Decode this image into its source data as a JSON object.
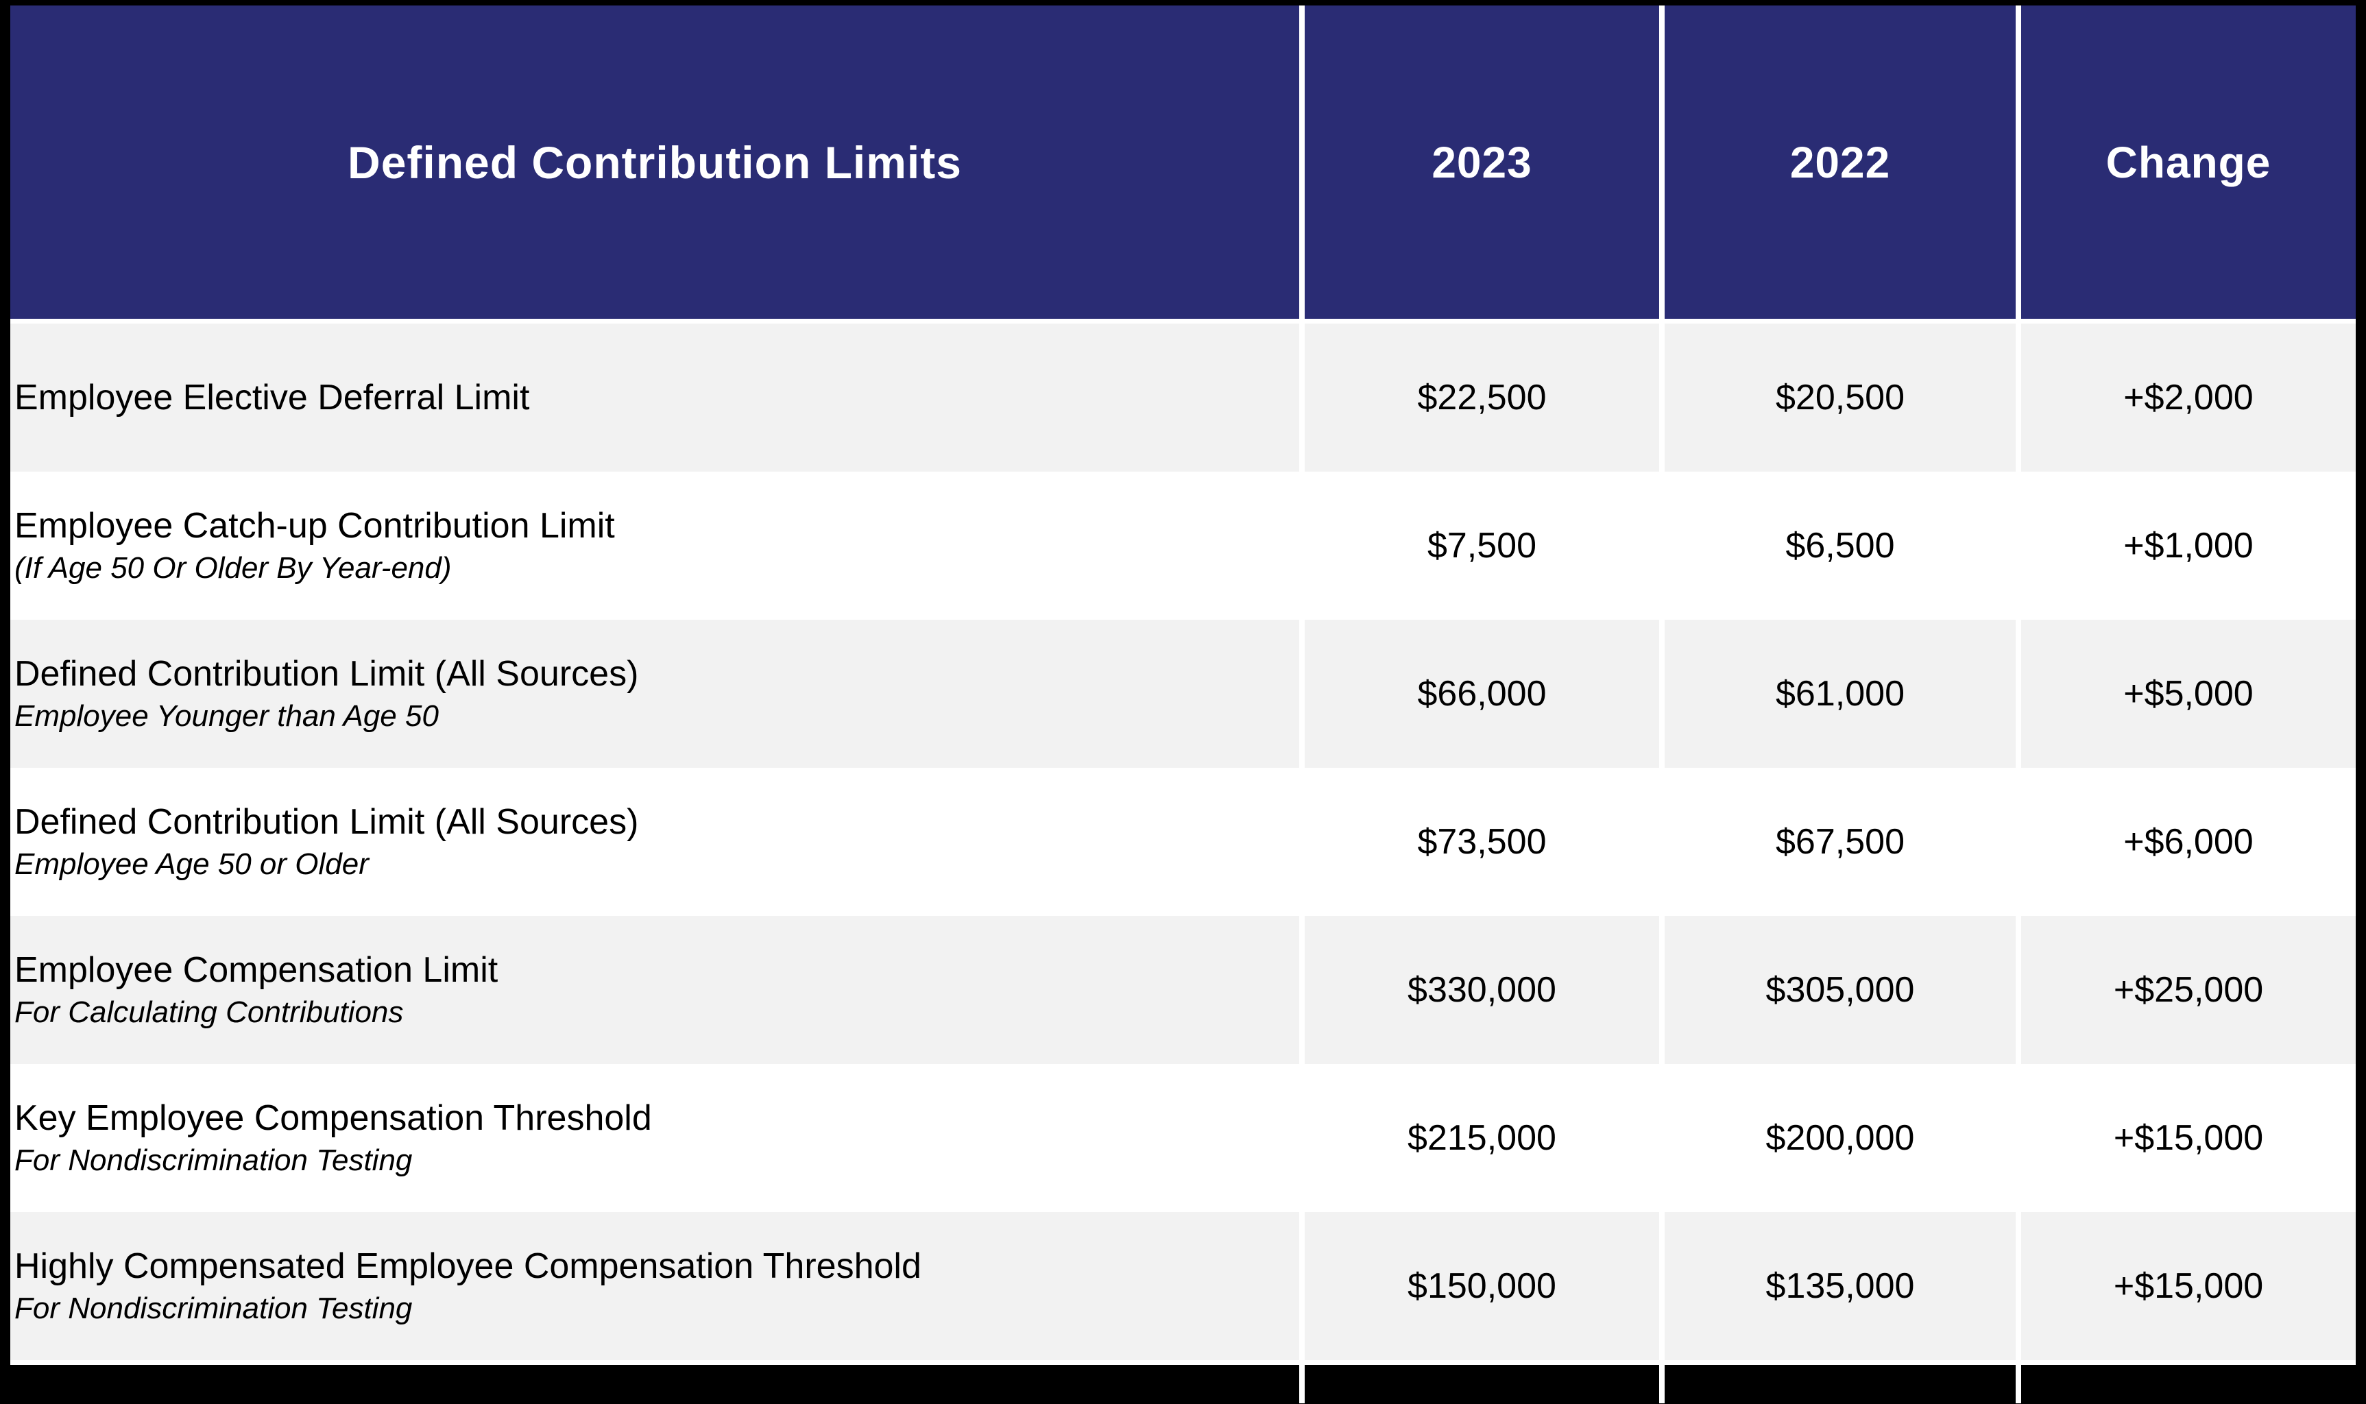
{
  "table": {
    "title": "Defined Contribution Limits",
    "columns": [
      "2023",
      "2022",
      "Change"
    ],
    "rows": [
      {
        "label": "Employee Elective Deferral Limit",
        "sublabel": "",
        "v2023": "$22,500",
        "v2022": "$20,500",
        "change": "+$2,000"
      },
      {
        "label": "Employee Catch-up Contribution Limit",
        "sublabel": "(If Age 50 Or Older By Year-end)",
        "v2023": "$7,500",
        "v2022": "$6,500",
        "change": "+$1,000"
      },
      {
        "label": "Defined Contribution Limit (All Sources)",
        "sublabel": "Employee Younger than Age 50",
        "v2023": "$66,000",
        "v2022": "$61,000",
        "change": "+$5,000"
      },
      {
        "label": "Defined Contribution Limit (All Sources)",
        "sublabel": "Employee Age 50 or Older",
        "v2023": "$73,500",
        "v2022": "$67,500",
        "change": "+$6,000"
      },
      {
        "label": "Employee Compensation Limit",
        "sublabel": "For Calculating Contributions",
        "v2023": "$330,000",
        "v2022": "$305,000",
        "change": "+$25,000"
      },
      {
        "label": "Key Employee Compensation Threshold",
        "sublabel": "For Nondiscrimination Testing",
        "v2023": "$215,000",
        "v2022": "$200,000",
        "change": "+$15,000"
      },
      {
        "label": "Highly Compensated Employee Compensation Threshold",
        "sublabel": "For Nondiscrimination Testing",
        "v2023": "$150,000",
        "v2022": "$135,000",
        "change": "+$15,000"
      }
    ]
  },
  "colors": {
    "header_bg": "#2A2C74",
    "header_text": "#FFFFFF",
    "row_bg": "#FFFFFF",
    "row_alt_bg": "#F2F2F2",
    "separator": "#FFFFFF",
    "frame": "#000000",
    "body_text": "#000000"
  },
  "chart_data": {
    "type": "table",
    "title": "Defined Contribution Limits",
    "columns": [
      "Defined Contribution Limits",
      "2023",
      "2022",
      "Change"
    ],
    "rows": [
      {
        "label": "Employee Elective Deferral Limit",
        "sublabel": "",
        "2023": 22500,
        "2022": 20500,
        "change": 2000
      },
      {
        "label": "Employee Catch-up Contribution Limit",
        "sublabel": "(If Age 50 Or Older By Year-end)",
        "2023": 7500,
        "2022": 6500,
        "change": 1000
      },
      {
        "label": "Defined Contribution Limit (All Sources)",
        "sublabel": "Employee Younger than Age 50",
        "2023": 66000,
        "2022": 61000,
        "change": 5000
      },
      {
        "label": "Defined Contribution Limit (All Sources)",
        "sublabel": "Employee Age 50 or Older",
        "2023": 73500,
        "2022": 67500,
        "change": 6000
      },
      {
        "label": "Employee Compensation Limit",
        "sublabel": "For Calculating Contributions",
        "2023": 330000,
        "2022": 305000,
        "change": 25000
      },
      {
        "label": "Key Employee Compensation Threshold",
        "sublabel": "For Nondiscrimination Testing",
        "2023": 215000,
        "2022": 200000,
        "change": 15000
      },
      {
        "label": "Highly Compensated Employee Compensation Threshold",
        "sublabel": "For Nondiscrimination Testing",
        "2023": 150000,
        "2022": 135000,
        "change": 15000
      }
    ],
    "layout_hints": {
      "header_style": "navy-with-white-text",
      "row_striping": "gray-white-alternating-starting-gray",
      "values_format": "USD, change prefixed with +"
    }
  }
}
